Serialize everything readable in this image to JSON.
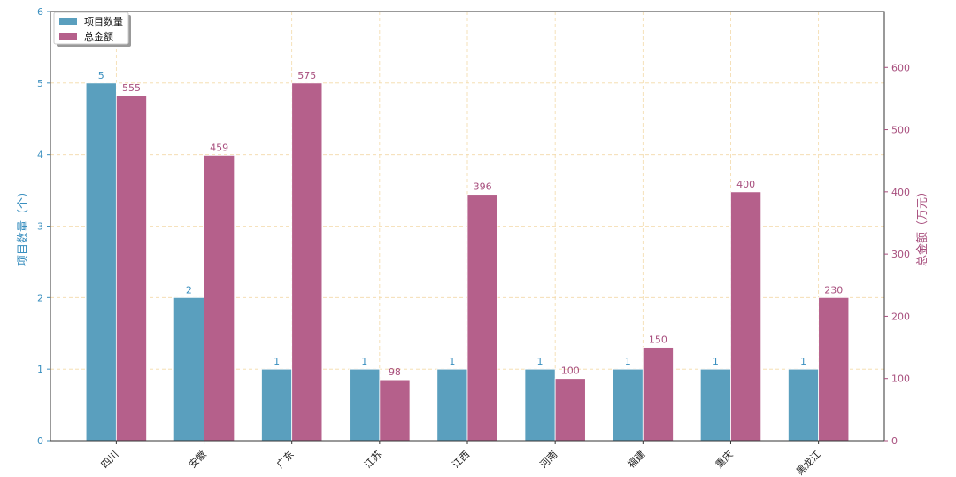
{
  "chart_data": {
    "type": "bar",
    "categories": [
      "四川",
      "安徽",
      "广东",
      "江苏",
      "江西",
      "河南",
      "福建",
      "重庆",
      "黑龙江"
    ],
    "series": [
      {
        "name": "项目数量",
        "axis": "left",
        "color": "#5a9fbe",
        "values": [
          5,
          2,
          1,
          1,
          1,
          1,
          1,
          1,
          1
        ]
      },
      {
        "name": "总金额",
        "axis": "right",
        "color": "#b5608b",
        "values": [
          555,
          459,
          575,
          98,
          396,
          100,
          150,
          400,
          230
        ]
      }
    ],
    "title": "",
    "xlabel": "",
    "ylabel_left": "项目数量（个）",
    "ylabel_right": "总金额（万元）",
    "ylim_left": [
      0,
      6
    ],
    "ylim_right": [
      0,
      690
    ],
    "yticks_left": [
      0,
      1,
      2,
      3,
      4,
      5,
      6
    ],
    "yticks_right": [
      0,
      100,
      200,
      300,
      400,
      500,
      600
    ],
    "left_axis_color": "#3a8fbf",
    "right_axis_color": "#a84f7e",
    "grid": true,
    "grid_color": "#f3d9a8",
    "legend_position": "top-left",
    "value_labels": true
  }
}
